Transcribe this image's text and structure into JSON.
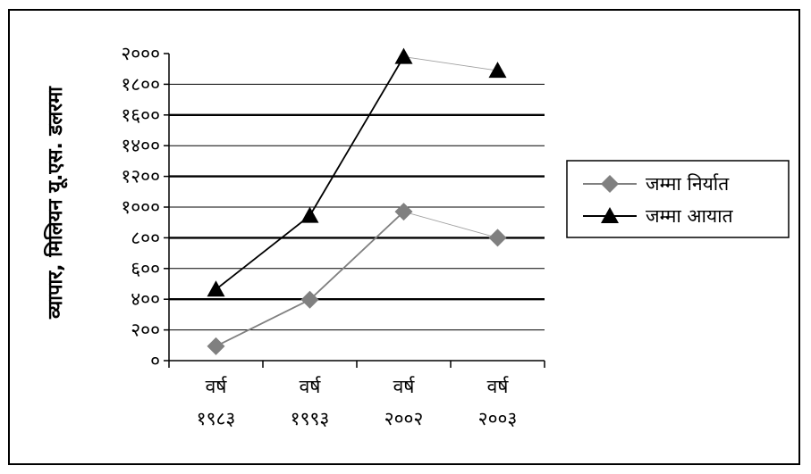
{
  "chart_data": {
    "type": "line",
    "ylabel": "व्यापार, मिलियन यू.एस. डलरमा",
    "ylim": [
      0,
      2000
    ],
    "yticks": [
      {
        "value": 0,
        "label": "०"
      },
      {
        "value": 200,
        "label": "२००"
      },
      {
        "value": 400,
        "label": "४००"
      },
      {
        "value": 600,
        "label": "६००"
      },
      {
        "value": 800,
        "label": "८००"
      },
      {
        "value": 1000,
        "label": "१०००"
      },
      {
        "value": 1200,
        "label": "१२००"
      },
      {
        "value": 1400,
        "label": "१४००"
      },
      {
        "value": 1600,
        "label": "१६००"
      },
      {
        "value": 1800,
        "label": "१८००"
      },
      {
        "value": 2000,
        "label": "२०००"
      }
    ],
    "categories": [
      [
        "वर्ष",
        "१९८३"
      ],
      [
        "वर्ष",
        "१९९३"
      ],
      [
        "वर्ष",
        "२००२"
      ],
      [
        "वर्ष",
        "२००३"
      ]
    ],
    "series": [
      {
        "name": "जम्मा निर्यात",
        "values": [
          94,
          397,
          970,
          800
        ],
        "color": "#808080",
        "marker": "diamond"
      },
      {
        "name": "जम्मा आयात",
        "values": [
          464,
          944,
          1979,
          1889
        ],
        "color": "#000000",
        "marker": "triangle"
      }
    ],
    "grid": true,
    "legend_position": "right"
  }
}
